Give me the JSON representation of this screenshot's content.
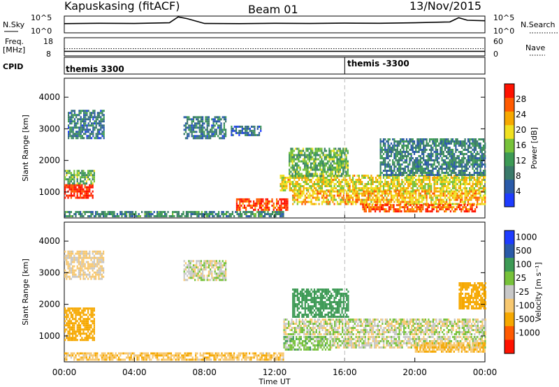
{
  "header": {
    "station": "Kapuskasing (fitACF)",
    "beam": "Beam 01",
    "date": "13/Nov/2015"
  },
  "colors": {
    "power_scale": [
      "#1e3cff",
      "#2a5aa8",
      "#3a7a6a",
      "#3d9a55",
      "#77c23a",
      "#f0e020",
      "#f6a800",
      "#ff5a00",
      "#ff1200"
    ],
    "velocity_scale": [
      "#ff1200",
      "#ff5a00",
      "#f6a800",
      "#f7c870",
      "#c8c8c8",
      "#77c23a",
      "#3d9a55",
      "#2a5aa8",
      "#1e3cff"
    ]
  },
  "chart_data": [
    {
      "type": "line",
      "name": "status-noise",
      "left_label": "N.Sky",
      "right_label": "N.Search",
      "left_ticks": [
        "10^5",
        "10^0"
      ],
      "right_ticks": [
        "10^5",
        "10^0"
      ],
      "x": [
        "00:00",
        "02:00",
        "04:00",
        "06:00",
        "06:30",
        "07:00",
        "08:00",
        "10:00",
        "12:00",
        "14:00",
        "16:00",
        "18:00",
        "20:00",
        "22:00",
        "22:30",
        "23:00",
        "24:00"
      ],
      "series": [
        {
          "values": [
            0.55,
            0.57,
            0.56,
            0.6,
            0.95,
            0.85,
            0.56,
            0.55,
            0.57,
            0.56,
            0.58,
            0.57,
            0.6,
            0.65,
            0.9,
            0.75,
            0.72
          ]
        }
      ]
    },
    {
      "type": "line",
      "name": "status-frequency",
      "left_label": "Freq.",
      "left_unit": "[MHz]",
      "right_label": "Nave",
      "left_ticks": [
        "18",
        "8"
      ],
      "right_ticks": [
        "60",
        "0"
      ],
      "x": [
        "00:00",
        "24:00"
      ],
      "series": [
        {
          "values": [
            10.5,
            10.5
          ]
        },
        {
          "values": [
            12,
            12
          ]
        }
      ]
    },
    {
      "type": "table",
      "name": "cpid-strip",
      "label": "CPID",
      "segments": [
        {
          "start": "00:00",
          "label": "themis 3300"
        },
        {
          "start": "16:00",
          "label": "themis -3300"
        }
      ]
    },
    {
      "type": "heatmap",
      "name": "power-panel",
      "ylabel": "Slant Range [km]",
      "yticks": [
        1000,
        2000,
        3000,
        4000
      ],
      "ylim": [
        180,
        4600
      ],
      "xlim": [
        0,
        24
      ],
      "colorbar_label": "Power [dB]",
      "colorbar_ticks": [
        4,
        8,
        12,
        16,
        20,
        24,
        28
      ],
      "colorbar_range": [
        0,
        32
      ],
      "regions": [
        {
          "t0": 0.0,
          "t1": 1.6,
          "r0": 850,
          "r1": 1250,
          "level": 30
        },
        {
          "t0": 0.0,
          "t1": 1.7,
          "r0": 1250,
          "r1": 1700,
          "level": 14
        },
        {
          "t0": 0.2,
          "t1": 2.3,
          "r0": 2700,
          "r1": 3600,
          "level": 8
        },
        {
          "t0": 0.0,
          "t1": 12.5,
          "r0": 250,
          "r1": 400,
          "level": 10
        },
        {
          "t0": 6.8,
          "t1": 9.2,
          "r0": 2700,
          "r1": 3400,
          "level": 8
        },
        {
          "t0": 9.5,
          "t1": 11.2,
          "r0": 2800,
          "r1": 3100,
          "level": 6
        },
        {
          "t0": 9.8,
          "t1": 12.7,
          "r0": 450,
          "r1": 800,
          "level": 28
        },
        {
          "t0": 12.3,
          "t1": 24.0,
          "r0": 1050,
          "r1": 1550,
          "level": 20
        },
        {
          "t0": 12.8,
          "t1": 16.2,
          "r0": 1500,
          "r1": 2400,
          "level": 14
        },
        {
          "t0": 13.0,
          "t1": 24.0,
          "r0": 650,
          "r1": 1050,
          "level": 22
        },
        {
          "t0": 17.0,
          "t1": 23.5,
          "r0": 380,
          "r1": 620,
          "level": 27
        },
        {
          "t0": 18.0,
          "t1": 24.0,
          "r0": 1550,
          "r1": 2700,
          "level": 9
        }
      ]
    },
    {
      "type": "heatmap",
      "name": "velocity-panel",
      "ylabel": "Slant Range [km]",
      "xlabel": "Time UT",
      "xticks": [
        "00:00",
        "04:00",
        "08:00",
        "12:00",
        "16:00",
        "20:00",
        "00:00"
      ],
      "yticks": [
        1000,
        2000,
        3000,
        4000
      ],
      "ylim": [
        180,
        4600
      ],
      "xlim": [
        0,
        24
      ],
      "colorbar_label": "Velocity [m s⁻¹]",
      "colorbar_ticks": [
        1000,
        500,
        100,
        25,
        -25,
        -100,
        -500,
        -1000
      ],
      "regions": [
        {
          "t0": 0.0,
          "t1": 1.7,
          "r0": 850,
          "r1": 1900,
          "v": -250
        },
        {
          "t0": 0.0,
          "t1": 2.2,
          "r0": 2800,
          "r1": 3700,
          "v": -40
        },
        {
          "t0": 0.0,
          "t1": 12.5,
          "r0": 250,
          "r1": 480,
          "v": -80
        },
        {
          "t0": 6.8,
          "t1": 9.2,
          "r0": 2800,
          "r1": 3400,
          "v": 0
        },
        {
          "t0": 12.5,
          "t1": 24.0,
          "r0": 1050,
          "r1": 1550,
          "v": 0
        },
        {
          "t0": 12.5,
          "t1": 15.2,
          "r0": 600,
          "r1": 1000,
          "v": 60
        },
        {
          "t0": 13.0,
          "t1": 16.2,
          "r0": 1600,
          "r1": 2500,
          "v": 400
        },
        {
          "t0": 15.2,
          "t1": 24.0,
          "r0": 650,
          "r1": 1000,
          "v": 0
        },
        {
          "t0": 20.0,
          "t1": 24.0,
          "r0": 500,
          "r1": 800,
          "v": -100
        },
        {
          "t0": 22.5,
          "t1": 24.0,
          "r0": 1900,
          "r1": 2700,
          "v": -300
        }
      ]
    }
  ]
}
